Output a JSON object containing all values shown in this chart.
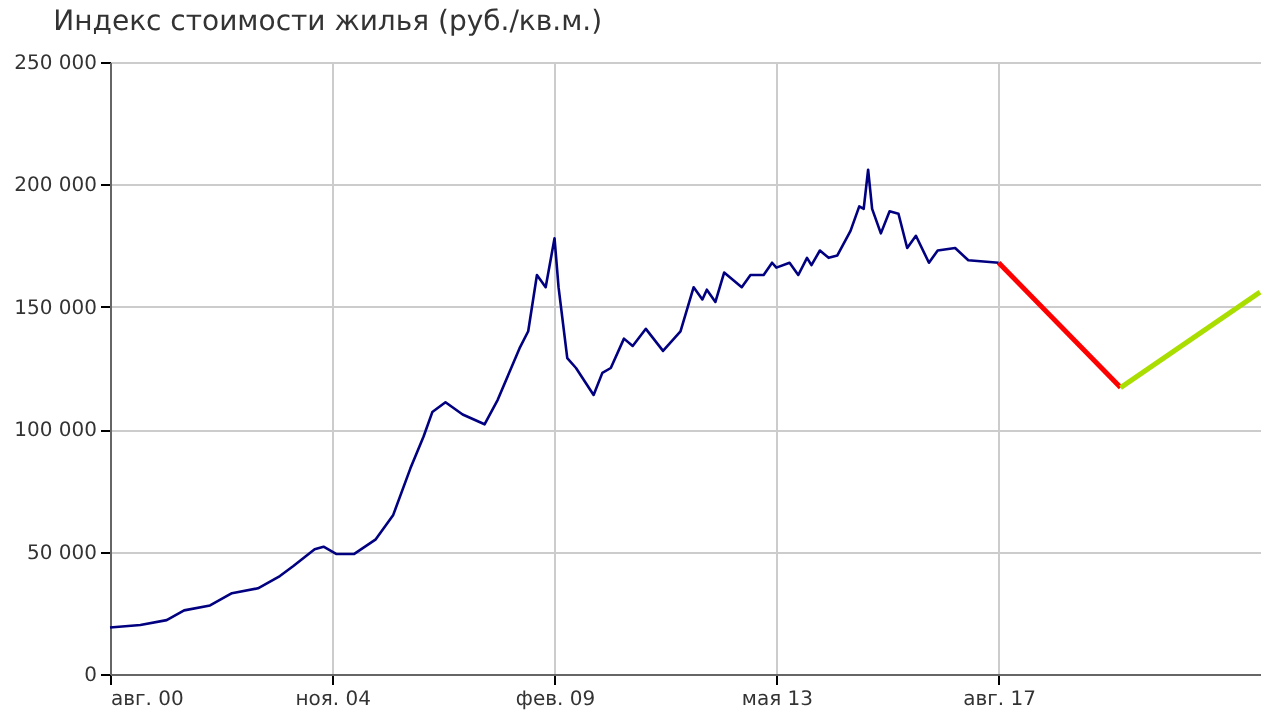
{
  "chart_data": {
    "type": "line",
    "title": "Индекс стоимости жилья (руб./кв.м.)",
    "xlim": [
      "2000-08",
      "2022-08"
    ],
    "xticks": [
      {
        "value": "2000-08",
        "label": "авг. 00"
      },
      {
        "value": "2004-11",
        "label": "ноя. 04"
      },
      {
        "value": "2009-02",
        "label": "фев. 09"
      },
      {
        "value": "2013-05",
        "label": "мая 13"
      },
      {
        "value": "2017-08",
        "label": "авг. 17"
      }
    ],
    "ylim": [
      0,
      250000
    ],
    "yticks": [
      {
        "value": 0,
        "label": "0"
      },
      {
        "value": 50000,
        "label": "50 000"
      },
      {
        "value": 100000,
        "label": "100 000"
      },
      {
        "value": 150000,
        "label": "150 000"
      },
      {
        "value": 200000,
        "label": "200 000"
      },
      {
        "value": 250000,
        "label": "250 000"
      }
    ],
    "grid": true,
    "line_style": "solid",
    "series": [
      {
        "color": "#000080",
        "x": [
          "2000-08",
          "2001-03",
          "2001-09",
          "2002-01",
          "2002-07",
          "2002-12",
          "2003-06",
          "2003-11",
          "2004-02",
          "2004-07",
          "2004-09",
          "2004-12",
          "2005-04",
          "2005-09",
          "2006-01",
          "2006-05",
          "2006-08",
          "2006-10",
          "2007-01",
          "2007-05",
          "2007-10",
          "2008-01",
          "2008-06",
          "2008-08",
          "2008-10",
          "2008-12",
          "2009-02",
          "2009-03",
          "2009-05",
          "2009-07",
          "2009-11",
          "2010-01",
          "2010-03",
          "2010-06",
          "2010-08",
          "2010-11",
          "2011-03",
          "2011-07",
          "2011-10",
          "2011-12",
          "2012-01",
          "2012-03",
          "2012-05",
          "2012-09",
          "2012-11",
          "2013-02",
          "2013-04",
          "2013-05",
          "2013-08",
          "2013-10",
          "2013-12",
          "2014-01",
          "2014-03",
          "2014-05",
          "2014-07",
          "2014-10",
          "2014-12",
          "2015-01",
          "2015-02",
          "2015-03",
          "2015-05",
          "2015-07",
          "2015-09",
          "2015-11",
          "2016-01",
          "2016-04",
          "2016-06",
          "2016-10",
          "2017-01",
          "2017-08"
        ],
        "values": [
          19000,
          20000,
          22000,
          26000,
          28000,
          33000,
          35000,
          40000,
          44000,
          51000,
          52000,
          49000,
          49000,
          55000,
          65000,
          84000,
          97000,
          107000,
          111000,
          106000,
          102000,
          112000,
          133000,
          140000,
          163000,
          158000,
          178000,
          158000,
          129000,
          125000,
          114000,
          123000,
          125000,
          137000,
          134000,
          141000,
          132000,
          140000,
          158000,
          153000,
          157000,
          152000,
          164000,
          158000,
          163000,
          163000,
          168000,
          166000,
          168000,
          163000,
          170000,
          167000,
          173000,
          170000,
          171000,
          181000,
          191000,
          190000,
          206000,
          190000,
          180000,
          189000,
          188000,
          174000,
          179000,
          168000,
          173000,
          174000,
          169000,
          168000
        ]
      },
      {
        "color": "#ff0000",
        "x": [
          "2017-08",
          "2019-12"
        ],
        "values": [
          168000,
          117000
        ]
      },
      {
        "color": "#aadd00",
        "x": [
          "2019-12",
          "2022-08"
        ],
        "values": [
          117000,
          156000
        ]
      }
    ]
  }
}
